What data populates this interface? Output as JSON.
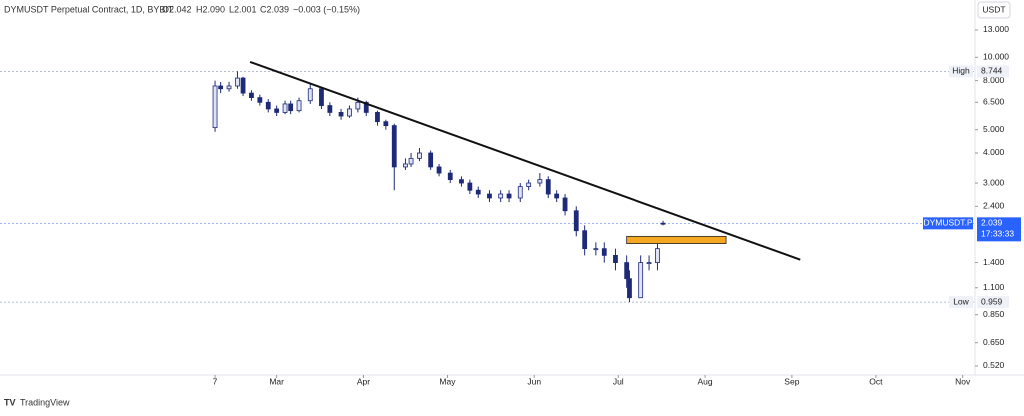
{
  "header": {
    "symbol": "DYMUSDT Perpetual Contract, 1D, BYBIT",
    "open": "O2.042",
    "high": "H2.090",
    "low": "L2.001",
    "close": "C2.039",
    "change": "−0.003 (−0.15%)"
  },
  "footer": {
    "brand": "TradingView"
  },
  "chart_data": {
    "type": "candlestick",
    "currency": "USDT",
    "log_scale": true,
    "up_color": "#dfe3f5",
    "down_color": "#1e2a78",
    "x": [
      0,
      2,
      5,
      8,
      10,
      13,
      16,
      19,
      22,
      25,
      27,
      30,
      34,
      38,
      41,
      45,
      48,
      51,
      54,
      58,
      61,
      64,
      68,
      70,
      73,
      77,
      80,
      84,
      88,
      91,
      94,
      98,
      102,
      105,
      109,
      112,
      116,
      119,
      122,
      125,
      129,
      132,
      136,
      139,
      143,
      147,
      148,
      152,
      155,
      158,
      160
    ],
    "open": [
      5.1,
      7.6,
      7.4,
      7.6,
      8.2,
      7.1,
      6.8,
      6.5,
      6.1,
      5.9,
      6.4,
      6.0,
      6.6,
      7.4,
      6.3,
      5.9,
      5.7,
      6.1,
      6.5,
      5.9,
      5.4,
      5.2,
      3.5,
      3.6,
      3.8,
      4.0,
      3.5,
      3.3,
      3.1,
      3.0,
      2.8,
      2.7,
      2.6,
      2.7,
      2.6,
      2.9,
      3.0,
      3.1,
      2.7,
      2.6,
      2.3,
      1.9,
      1.6,
      1.6,
      1.5,
      1.4,
      1.2,
      1.0,
      1.4,
      1.4,
      2.042
    ],
    "high": [
      8.0,
      7.9,
      7.9,
      8.744,
      8.3,
      7.3,
      7.0,
      6.7,
      6.3,
      6.6,
      6.6,
      6.8,
      7.8,
      7.5,
      6.5,
      6.1,
      6.3,
      6.8,
      6.6,
      6.0,
      5.5,
      5.3,
      3.8,
      4.0,
      4.2,
      4.1,
      3.6,
      3.4,
      3.2,
      3.1,
      2.9,
      2.8,
      2.8,
      2.8,
      3.0,
      3.1,
      3.3,
      3.2,
      2.8,
      2.7,
      2.4,
      2.0,
      1.7,
      1.7,
      1.6,
      1.5,
      1.3,
      1.5,
      1.5,
      1.7,
      2.09
    ],
    "low": [
      4.9,
      7.1,
      7.2,
      7.4,
      6.9,
      6.6,
      6.3,
      5.9,
      5.7,
      5.8,
      5.8,
      5.9,
      6.4,
      6.1,
      5.7,
      5.5,
      5.6,
      5.9,
      5.7,
      5.2,
      5.0,
      2.8,
      3.4,
      3.5,
      3.7,
      3.4,
      3.2,
      3.0,
      2.9,
      2.7,
      2.6,
      2.5,
      2.5,
      2.5,
      2.5,
      2.8,
      2.9,
      2.6,
      2.5,
      2.2,
      1.8,
      1.5,
      1.5,
      1.4,
      1.3,
      1.1,
      0.959,
      1.0,
      1.3,
      1.3,
      2.001
    ],
    "close": [
      7.6,
      7.4,
      7.6,
      8.2,
      7.1,
      6.8,
      6.5,
      6.1,
      5.9,
      6.4,
      6.0,
      6.6,
      7.4,
      6.3,
      5.9,
      5.7,
      6.1,
      6.5,
      5.9,
      5.4,
      5.2,
      3.5,
      3.6,
      3.8,
      4.0,
      3.5,
      3.3,
      3.1,
      3.0,
      2.8,
      2.7,
      2.6,
      2.7,
      2.6,
      2.9,
      3.0,
      3.1,
      2.7,
      2.6,
      2.3,
      1.9,
      1.6,
      1.6,
      1.5,
      1.4,
      1.2,
      1.0,
      1.4,
      1.4,
      1.6,
      2.039
    ],
    "xlim": [
      -76.8,
      271.4
    ],
    "xticks": [
      {
        "value": 0,
        "label": "7"
      },
      {
        "value": 22,
        "label": "Mar"
      },
      {
        "value": 53,
        "label": "Apr"
      },
      {
        "value": 83,
        "label": "May"
      },
      {
        "value": 114,
        "label": "Jun"
      },
      {
        "value": 144,
        "label": "Jul"
      },
      {
        "value": 175,
        "label": "Aug"
      },
      {
        "value": 206,
        "label": "Sep"
      },
      {
        "value": 236,
        "label": "Oct"
      },
      {
        "value": 267,
        "label": "Nov"
      }
    ],
    "ylim": [
      0.477,
      14.3
    ],
    "yticks": [
      {
        "value": 13,
        "label": "13.000"
      },
      {
        "value": 10,
        "label": "10.000"
      },
      {
        "value": 8,
        "label": "8.000"
      },
      {
        "value": 6.5,
        "label": "6.500"
      },
      {
        "value": 5,
        "label": "5.000"
      },
      {
        "value": 4,
        "label": "4.000"
      },
      {
        "value": 3,
        "label": "3.000"
      },
      {
        "value": 2.4,
        "label": "2.400"
      },
      {
        "value": 1.4,
        "label": "1.400"
      },
      {
        "value": 1.1,
        "label": "1.100"
      },
      {
        "value": 0.85,
        "label": "0.850"
      },
      {
        "value": 0.65,
        "label": "0.650"
      },
      {
        "value": 0.52,
        "label": "0.520"
      }
    ],
    "high_marker": {
      "label": "High",
      "value": 8.744
    },
    "low_marker": {
      "label": "Low",
      "value": 0.959
    },
    "last_price": {
      "label": "DYMUSDT.P",
      "value": 2.039,
      "countdown": "17:33:33"
    },
    "trendline": {
      "x": [
        12.5,
        209
      ],
      "y": [
        9.57,
        1.44
      ],
      "color": "#111111"
    },
    "zone": {
      "x": [
        147,
        182.5
      ],
      "y": [
        1.68,
        1.8
      ],
      "color": "#f5a623"
    }
  }
}
